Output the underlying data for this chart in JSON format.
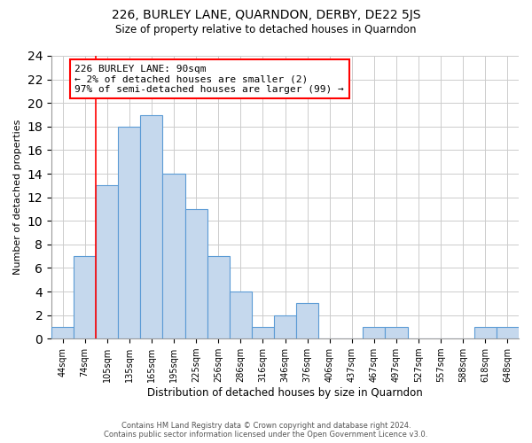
{
  "title": "226, BURLEY LANE, QUARNDON, DERBY, DE22 5JS",
  "subtitle": "Size of property relative to detached houses in Quarndon",
  "xlabel": "Distribution of detached houses by size in Quarndon",
  "ylabel": "Number of detached properties",
  "bin_labels": [
    "44sqm",
    "74sqm",
    "105sqm",
    "135sqm",
    "165sqm",
    "195sqm",
    "225sqm",
    "256sqm",
    "286sqm",
    "316sqm",
    "346sqm",
    "376sqm",
    "406sqm",
    "437sqm",
    "467sqm",
    "497sqm",
    "527sqm",
    "557sqm",
    "588sqm",
    "618sqm",
    "648sqm"
  ],
  "values": [
    1,
    7,
    13,
    18,
    19,
    14,
    11,
    7,
    4,
    1,
    2,
    3,
    0,
    0,
    1,
    1,
    0,
    0,
    0,
    1,
    1
  ],
  "bar_color": "#c5d8ed",
  "bar_edge_color": "#5b9bd5",
  "annotation_text_line1": "226 BURLEY LANE: 90sqm",
  "annotation_text_line2": "← 2% of detached houses are smaller (2)",
  "annotation_text_line3": "97% of semi-detached houses are larger (99) →",
  "annotation_box_color": "white",
  "annotation_box_edge_color": "red",
  "marker_line_color": "red",
  "ylim": [
    0,
    24
  ],
  "yticks": [
    0,
    2,
    4,
    6,
    8,
    10,
    12,
    14,
    16,
    18,
    20,
    22,
    24
  ],
  "footer_line1": "Contains HM Land Registry data © Crown copyright and database right 2024.",
  "footer_line2": "Contains public sector information licensed under the Open Government Licence v3.0.",
  "bg_color": "white",
  "grid_color": "#cccccc"
}
